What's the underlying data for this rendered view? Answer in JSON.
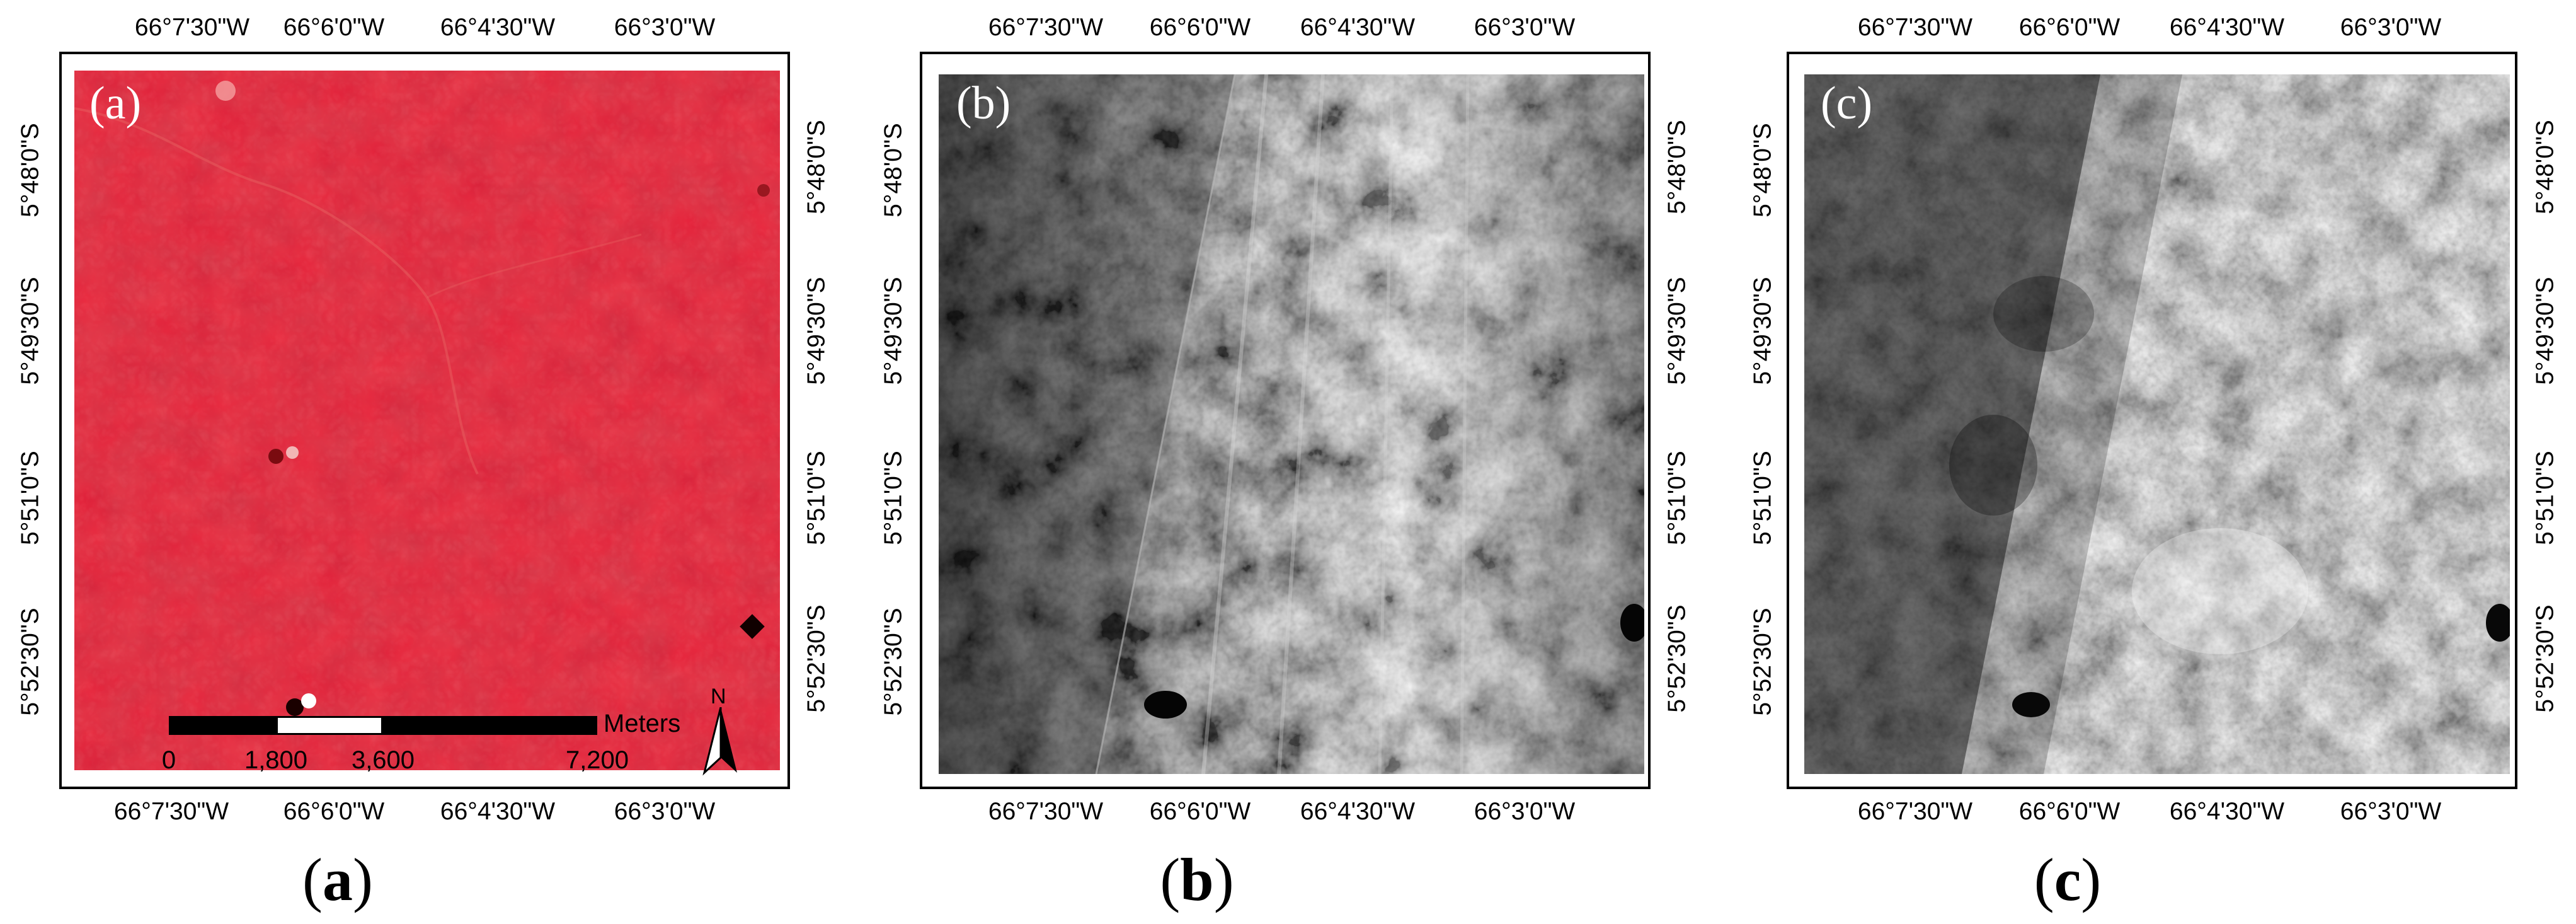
{
  "panels": [
    {
      "id": "a",
      "inner_label": "(a)",
      "caption": "a",
      "style": "false-color-red",
      "top_ticks": [
        "66°7'30\"W",
        "66°6'0\"W",
        "66°4'30\"W",
        "66°3'0\"W"
      ],
      "bottom_ticks": [
        "66°7'30\"W",
        "66°6'0\"W",
        "66°4'30\"W",
        "66°3'0\"W"
      ],
      "left_ticks": [
        "5°48'0\"S",
        "5°49'30\"S",
        "5°51'0\"S",
        "5°52'30\"S"
      ],
      "right_ticks": [
        "5°48'0\"S",
        "5°49'30\"S",
        "5°51'0\"S",
        "5°52'30\"S"
      ]
    },
    {
      "id": "b",
      "inner_label": "(b)",
      "caption": "b",
      "style": "grayscale-striped",
      "top_ticks": [
        "66°7'30\"W",
        "66°6'0\"W",
        "66°4'30\"W",
        "66°3'0\"W"
      ],
      "bottom_ticks": [
        "66°7'30\"W",
        "66°6'0\"W",
        "66°4'30\"W",
        "66°3'0\"W"
      ],
      "left_ticks": [
        "5°48'0\"S",
        "5°49'30\"S",
        "5°51'0\"S",
        "5°52'30\"S"
      ],
      "right_ticks": [
        "5°48'0\"S",
        "5°49'30\"S",
        "5°51'0\"S",
        "5°52'30\"S"
      ]
    },
    {
      "id": "c",
      "inner_label": "(c)",
      "caption": "c",
      "style": "grayscale-smooth",
      "top_ticks": [
        "66°7'30\"W",
        "66°6'0\"W",
        "66°4'30\"W",
        "66°3'0\"W"
      ],
      "bottom_ticks": [
        "66°7'30\"W",
        "66°6'0\"W",
        "66°4'30\"W",
        "66°3'0\"W"
      ],
      "left_ticks": [
        "5°48'0\"S",
        "5°49'30\"S",
        "5°51'0\"S",
        "5°52'30\"S"
      ],
      "right_ticks": [
        "5°48'0\"S",
        "5°49'30\"S",
        "5°51'0\"S",
        "5°52'30\"S"
      ]
    }
  ],
  "scale_bar": {
    "labels": [
      "0",
      "1,800",
      "3,600",
      "7,200"
    ],
    "values": [
      0,
      1800,
      3600,
      7200
    ],
    "units": "Meters"
  },
  "north_arrow": {
    "letter": "N"
  },
  "colors": {
    "red_base": "#c8101a",
    "frame": "#000000"
  },
  "caption_open": "(",
  "caption_close": ")"
}
